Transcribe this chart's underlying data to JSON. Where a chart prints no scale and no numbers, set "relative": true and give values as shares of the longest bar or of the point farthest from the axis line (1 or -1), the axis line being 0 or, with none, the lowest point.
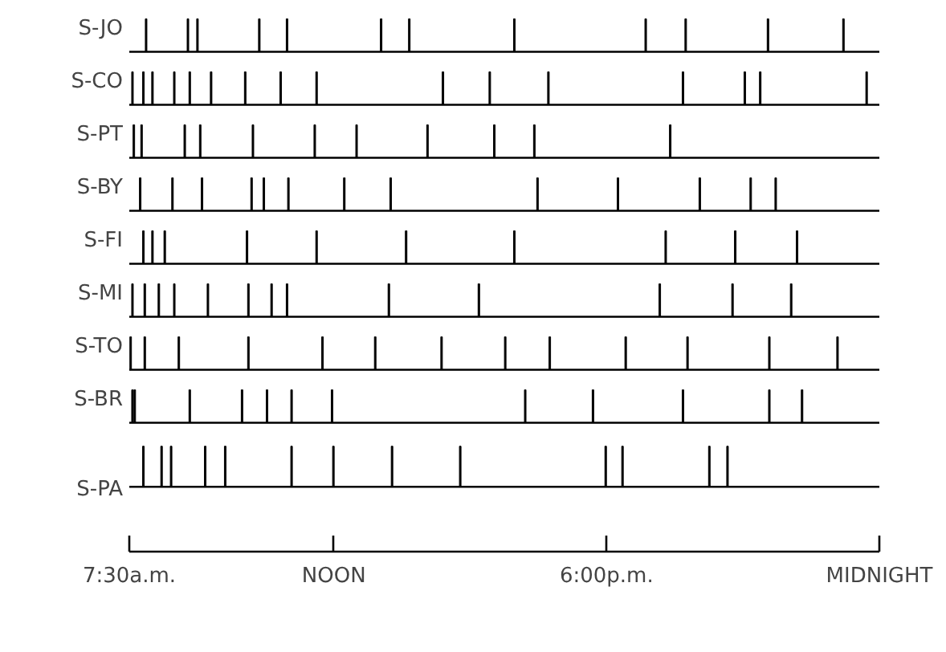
{
  "chart_data": [
    {
      "type": "bar",
      "ylabel": "S-JO",
      "relative": true,
      "xlim": [
        7.5,
        24
      ],
      "tick_labels": false,
      "color": "#000000",
      "x": [
        7.87,
        8.79,
        9.0,
        10.36,
        10.97,
        13.04,
        13.66,
        15.97,
        18.86,
        19.74,
        21.55,
        23.21
      ],
      "values": [
        1,
        1,
        1,
        1,
        1,
        1,
        1,
        1,
        1,
        1,
        1,
        1
      ]
    },
    {
      "type": "bar",
      "ylabel": "S-CO",
      "relative": true,
      "xlim": [
        7.5,
        24
      ],
      "tick_labels": false,
      "color": "#000000",
      "x": [
        7.57,
        7.81,
        8.01,
        8.49,
        8.83,
        9.3,
        10.05,
        10.83,
        11.62,
        14.4,
        15.43,
        16.72,
        19.68,
        21.04,
        21.38,
        23.72
      ],
      "values": [
        1,
        1,
        1,
        1,
        1,
        1,
        1,
        1,
        1,
        1,
        1,
        1,
        1,
        1,
        1,
        1
      ]
    },
    {
      "type": "bar",
      "ylabel": "S-PT",
      "relative": true,
      "xlim": [
        7.5,
        24
      ],
      "tick_labels": false,
      "color": "#000000",
      "x": [
        7.6,
        7.77,
        8.72,
        9.06,
        10.22,
        11.58,
        12.5,
        14.06,
        15.53,
        16.41,
        19.4
      ],
      "values": [
        1,
        1,
        1,
        1,
        1,
        1,
        1,
        1,
        1,
        1,
        1
      ]
    },
    {
      "type": "bar",
      "ylabel": "S-BY",
      "relative": true,
      "xlim": [
        7.5,
        24
      ],
      "tick_labels": false,
      "color": "#000000",
      "x": [
        7.74,
        8.45,
        9.1,
        10.19,
        10.46,
        11.0,
        12.23,
        13.25,
        16.48,
        18.25,
        20.05,
        21.17,
        21.72
      ],
      "values": [
        1,
        1,
        1,
        1,
        1,
        1,
        1,
        1,
        1,
        1,
        1,
        1,
        1
      ]
    },
    {
      "type": "bar",
      "ylabel": "S-FI",
      "relative": true,
      "xlim": [
        7.5,
        24
      ],
      "tick_labels": false,
      "color": "#000000",
      "x": [
        7.81,
        8.01,
        8.28,
        10.09,
        11.62,
        13.59,
        15.97,
        19.3,
        20.83,
        22.19
      ],
      "values": [
        1,
        1,
        1,
        1,
        1,
        1,
        1,
        1,
        1,
        1
      ]
    },
    {
      "type": "bar",
      "ylabel": "S-MI",
      "relative": true,
      "xlim": [
        7.5,
        24
      ],
      "tick_labels": false,
      "color": "#000000",
      "x": [
        7.57,
        7.84,
        8.15,
        8.49,
        9.23,
        10.12,
        10.63,
        10.97,
        13.21,
        15.19,
        19.17,
        20.77,
        22.06
      ],
      "values": [
        1,
        1,
        1,
        1,
        1,
        1,
        1,
        1,
        1,
        1,
        1,
        1,
        1
      ]
    },
    {
      "type": "bar",
      "ylabel": "S-TO",
      "relative": true,
      "xlim": [
        7.5,
        24
      ],
      "tick_labels": false,
      "color": "#000000",
      "x": [
        7.53,
        7.84,
        8.59,
        10.12,
        11.75,
        12.91,
        14.37,
        15.77,
        16.75,
        18.42,
        19.78,
        21.58,
        23.08
      ],
      "values": [
        1,
        1,
        1,
        1,
        1,
        1,
        1,
        1,
        1,
        1,
        1,
        1,
        1
      ]
    },
    {
      "type": "bar",
      "ylabel": "S-BR",
      "relative": true,
      "xlim": [
        7.5,
        24
      ],
      "tick_labels": false,
      "color": "#000000",
      "x": [
        7.57,
        7.62,
        8.83,
        9.98,
        10.53,
        11.07,
        11.96,
        16.21,
        17.7,
        19.68,
        21.58,
        22.3
      ],
      "values": [
        1,
        1,
        1,
        1,
        1,
        1,
        1,
        1,
        1,
        1,
        1,
        1
      ]
    },
    {
      "type": "bar",
      "ylabel": "S-PA",
      "relative": true,
      "xlim": [
        7.5,
        24
      ],
      "tick_labels": "x",
      "color": "#000000",
      "x": [
        7.81,
        8.21,
        8.42,
        9.17,
        9.61,
        11.07,
        11.99,
        13.28,
        14.78,
        17.98,
        18.35,
        20.26,
        20.66
      ],
      "values": [
        1,
        1,
        1,
        1,
        1,
        1,
        1,
        1,
        1,
        1,
        1,
        1,
        1
      ],
      "xticks": [
        {
          "value": 7.5,
          "label": "7:30a.m."
        },
        {
          "value": 12,
          "label": "NOON"
        },
        {
          "value": 18,
          "label": "6:00p.m."
        },
        {
          "value": 24,
          "label": "MIDNIGHT"
        }
      ]
    }
  ]
}
